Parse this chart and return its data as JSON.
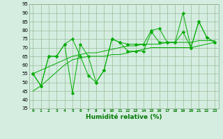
{
  "x": [
    0,
    1,
    2,
    3,
    4,
    5,
    6,
    7,
    8,
    9,
    10,
    11,
    12,
    13,
    14,
    15,
    16,
    17,
    18,
    19,
    20,
    21,
    22,
    23
  ],
  "series1": [
    55,
    48,
    65,
    65,
    72,
    44,
    72,
    65,
    50,
    57,
    75,
    73,
    72,
    72,
    72,
    80,
    81,
    73,
    73,
    90,
    70,
    85,
    76,
    73
  ],
  "series2": [
    55,
    48,
    65,
    65,
    72,
    75,
    65,
    54,
    50,
    57,
    75,
    73,
    68,
    68,
    68,
    79,
    73,
    73,
    73,
    79,
    70,
    85,
    76,
    73
  ],
  "trend1": [
    55,
    57,
    59,
    61,
    63,
    65,
    66,
    67,
    67,
    68,
    69,
    70,
    71,
    71,
    72,
    72,
    72,
    73,
    73,
    73,
    73,
    74,
    74,
    74
  ],
  "trend2": [
    45,
    48,
    52,
    56,
    60,
    63,
    64,
    65,
    65,
    65,
    66,
    66,
    67,
    68,
    69,
    70,
    70,
    70,
    70,
    70,
    70,
    71,
    72,
    73
  ],
  "line_color": "#00aa00",
  "bg_color": "#d4ede0",
  "grid_color": "#99bb99",
  "xlabel": "Humidité relative (%)",
  "xlabel_color": "#007700",
  "ylim": [
    35,
    95
  ],
  "yticks": [
    35,
    40,
    45,
    50,
    55,
    60,
    65,
    70,
    75,
    80,
    85,
    90,
    95
  ],
  "xticks": [
    0,
    1,
    2,
    3,
    4,
    5,
    6,
    7,
    8,
    9,
    10,
    11,
    12,
    13,
    14,
    15,
    16,
    17,
    18,
    19,
    20,
    21,
    22,
    23
  ]
}
